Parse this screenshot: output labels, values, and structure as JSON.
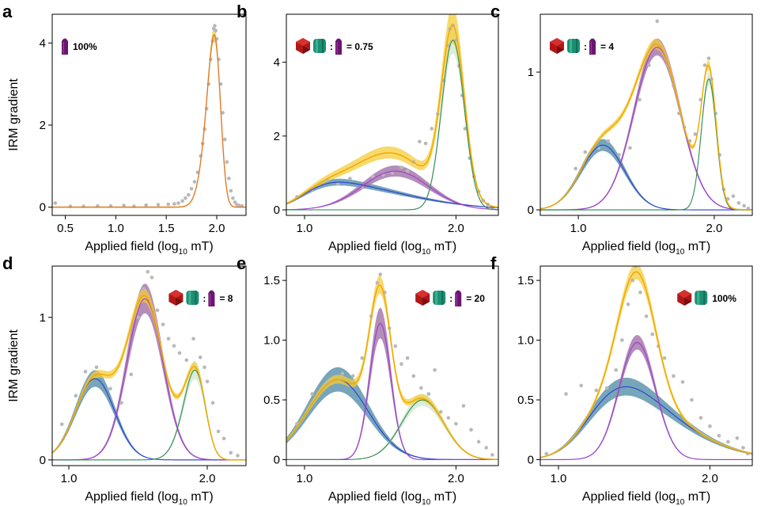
{
  "figure": {
    "colors": {
      "total_line": "#f0a800",
      "total_band": "#f5cc3a",
      "blue_line": "#2a3fd6",
      "blue_band": "#5f95ad",
      "purple_line": "#9a3fd0",
      "purple_band": "#a779ad",
      "green_line": "#2f8a52",
      "green_band": "#d3ead5",
      "data_points": "#b8b8b8",
      "hematite_icon": "#b01818",
      "goethite_icon": "#1c8f73",
      "magnetite_icon": "#6a1670"
    }
  },
  "chart_data": [
    {
      "panel": "a",
      "type": "line",
      "title": "",
      "legend_text": "100%",
      "legend_icons": [
        "purple-rod"
      ],
      "xlabel": "Applied field (log",
      "xlabel_sub": "10",
      "xlabel_unit": " mT)",
      "ylabel": "IRM gradient",
      "xlim": [
        0.37,
        2.29
      ],
      "ylim": [
        -0.2,
        4.7
      ],
      "xticks": [
        0.5,
        1.0,
        1.5,
        2.0
      ],
      "xtick_labels": [
        "0.5",
        "1.0",
        "1.5",
        "2.0"
      ],
      "yticks": [
        0,
        2,
        4
      ],
      "ytick_labels": [
        "0",
        "2",
        "4"
      ],
      "components": [
        {
          "name": "purple",
          "shape": "skewnormal",
          "loc": 2.03,
          "scale": 0.105,
          "alpha": -2.0,
          "amp": 4.2,
          "band": 0.05,
          "visible_line": false,
          "visible_band": false
        }
      ],
      "total_color": "total",
      "total_band": 0.04,
      "total_line": "#e07a2a",
      "points": [
        [
          0.4,
          0.1
        ],
        [
          0.55,
          0.02
        ],
        [
          0.68,
          0.02
        ],
        [
          0.82,
          0.03
        ],
        [
          0.95,
          0.03
        ],
        [
          1.08,
          0.04
        ],
        [
          1.18,
          0.02
        ],
        [
          1.3,
          0.05
        ],
        [
          1.42,
          0.06
        ],
        [
          1.52,
          0.07
        ],
        [
          1.58,
          0.08
        ],
        [
          1.62,
          0.1
        ],
        [
          1.66,
          0.15
        ],
        [
          1.69,
          0.22
        ],
        [
          1.72,
          0.3
        ],
        [
          1.75,
          0.45
        ],
        [
          1.78,
          0.62
        ],
        [
          1.81,
          0.85
        ],
        [
          1.84,
          1.25
        ],
        [
          1.86,
          1.55
        ],
        [
          1.88,
          1.9
        ],
        [
          1.9,
          2.4
        ],
        [
          1.92,
          3.0
        ],
        [
          1.94,
          3.6
        ],
        [
          1.96,
          4.05
        ],
        [
          1.97,
          4.35
        ],
        [
          1.98,
          4.42
        ],
        [
          1.99,
          4.3
        ],
        [
          2.0,
          4.1
        ],
        [
          2.02,
          3.6
        ],
        [
          2.04,
          3.0
        ],
        [
          2.06,
          2.3
        ],
        [
          2.08,
          1.65
        ],
        [
          2.1,
          1.1
        ],
        [
          2.12,
          0.7
        ],
        [
          2.14,
          0.4
        ],
        [
          2.16,
          0.22
        ],
        [
          2.18,
          0.12
        ],
        [
          2.2,
          0.06
        ],
        [
          2.22,
          0.04
        ],
        [
          2.25,
          0.03
        ]
      ]
    },
    {
      "panel": "b",
      "type": "line",
      "legend_text": "= 0.75",
      "legend_icons": [
        "red-octahedron",
        "green-cylinder",
        "colon",
        "purple-rod"
      ],
      "xlabel": "Applied field (log",
      "xlabel_sub": "10",
      "xlabel_unit": " mT)",
      "ylabel": "",
      "xlim": [
        0.88,
        2.28
      ],
      "ylim": [
        -0.15,
        5.3
      ],
      "xticks": [
        1.0,
        2.0
      ],
      "xtick_labels": [
        "1.0",
        "2.0"
      ],
      "yticks": [
        0,
        2,
        4
      ],
      "ytick_labels": [
        "0",
        "2",
        "4"
      ],
      "components": [
        {
          "name": "blue",
          "shape": "skewnormal",
          "loc": 1.0,
          "scale": 0.55,
          "alpha": 4.0,
          "amp": 0.75,
          "band": 0.12
        },
        {
          "name": "purple",
          "shape": "skewnormal",
          "loc": 1.6,
          "scale": 0.22,
          "alpha": 0.0,
          "amp": 1.05,
          "band": 0.14
        },
        {
          "name": "green",
          "shape": "skewnormal",
          "loc": 1.98,
          "scale": 0.075,
          "alpha": 0.0,
          "amp": 4.6,
          "band": 0.08
        }
      ],
      "total_band": 0.1,
      "points": [
        [
          0.95,
          0.35
        ],
        [
          1.05,
          0.55
        ],
        [
          1.15,
          0.8
        ],
        [
          1.22,
          0.7
        ],
        [
          1.3,
          0.85
        ],
        [
          1.38,
          0.6
        ],
        [
          1.45,
          0.9
        ],
        [
          1.52,
          0.95
        ],
        [
          1.58,
          1.0
        ],
        [
          1.64,
          1.15
        ],
        [
          1.68,
          1.05
        ],
        [
          1.72,
          1.3
        ],
        [
          1.76,
          1.85
        ],
        [
          1.8,
          1.8
        ],
        [
          1.84,
          2.2
        ],
        [
          1.88,
          2.6
        ],
        [
          1.92,
          3.5
        ],
        [
          1.95,
          4.45
        ],
        [
          1.96,
          4.9
        ],
        [
          1.98,
          5.0
        ],
        [
          2.0,
          4.6
        ],
        [
          2.02,
          3.9
        ],
        [
          2.04,
          3.1
        ],
        [
          2.06,
          2.2
        ],
        [
          2.09,
          1.4
        ],
        [
          2.12,
          0.9
        ],
        [
          2.15,
          0.5
        ],
        [
          2.18,
          0.25
        ],
        [
          2.21,
          0.15
        ],
        [
          2.24,
          0.05
        ]
      ]
    },
    {
      "panel": "c",
      "type": "line",
      "legend_text": "= 4",
      "legend_icons": [
        "red-octahedron",
        "green-cylinder",
        "colon",
        "purple-rod"
      ],
      "xlabel": "Applied field (log",
      "xlabel_sub": "10",
      "xlabel_unit": " mT)",
      "ylabel": "",
      "xlim": [
        0.72,
        2.28
      ],
      "ylim": [
        -0.04,
        1.42
      ],
      "xticks": [
        1.0,
        2.0
      ],
      "xtick_labels": [
        "1.0",
        "2.0"
      ],
      "yticks": [
        0,
        1
      ],
      "ytick_labels": [
        "0",
        "1"
      ],
      "components": [
        {
          "name": "blue",
          "shape": "skewnormal",
          "loc": 1.18,
          "scale": 0.16,
          "alpha": 0.0,
          "amp": 0.47,
          "band": 0.09
        },
        {
          "name": "purple",
          "shape": "skewnormal",
          "loc": 1.58,
          "scale": 0.17,
          "alpha": 0.0,
          "amp": 1.18,
          "band": 0.05
        },
        {
          "name": "green",
          "shape": "skewnormal",
          "loc": 1.96,
          "scale": 0.055,
          "alpha": 0.0,
          "amp": 0.95,
          "band": 0.05
        }
      ],
      "total_band": 0.03,
      "points": [
        [
          0.98,
          0.3
        ],
        [
          1.05,
          0.42
        ],
        [
          1.15,
          0.45
        ],
        [
          1.22,
          0.5
        ],
        [
          1.3,
          0.4
        ],
        [
          1.38,
          0.45
        ],
        [
          1.45,
          0.8
        ],
        [
          1.52,
          1.05
        ],
        [
          1.56,
          1.2
        ],
        [
          1.58,
          1.37
        ],
        [
          1.62,
          1.15
        ],
        [
          1.66,
          1.05
        ],
        [
          1.7,
          0.9
        ],
        [
          1.74,
          0.7
        ],
        [
          1.78,
          0.6
        ],
        [
          1.82,
          0.5
        ],
        [
          1.86,
          0.55
        ],
        [
          1.9,
          0.8
        ],
        [
          1.93,
          1.05
        ],
        [
          1.96,
          1.1
        ],
        [
          1.98,
          0.95
        ],
        [
          2.01,
          0.7
        ],
        [
          2.04,
          0.4
        ],
        [
          2.07,
          0.15
        ],
        [
          2.1,
          0.08
        ],
        [
          2.14,
          0.1
        ],
        [
          2.18,
          0.05
        ],
        [
          2.22,
          0.03
        ],
        [
          2.25,
          0.01
        ]
      ]
    },
    {
      "panel": "d",
      "type": "line",
      "legend_text": "= 8",
      "legend_icons": [
        "red-octahedron",
        "green-cylinder",
        "colon",
        "purple-rod"
      ],
      "xlabel": "Applied field (log",
      "xlabel_sub": "10",
      "xlabel_unit": " mT)",
      "ylabel": "IRM gradient",
      "xlim": [
        0.88,
        2.28
      ],
      "ylim": [
        -0.04,
        1.36
      ],
      "xticks": [
        1.0,
        2.0
      ],
      "xtick_labels": [
        "1.0",
        "2.0"
      ],
      "yticks": [
        0,
        1
      ],
      "ytick_labels": [
        "0",
        "1"
      ],
      "components": [
        {
          "name": "blue",
          "shape": "skewnormal",
          "loc": 1.19,
          "scale": 0.14,
          "alpha": 0.0,
          "amp": 0.57,
          "band": 0.1
        },
        {
          "name": "purple",
          "shape": "skewnormal",
          "loc": 1.55,
          "scale": 0.13,
          "alpha": 0.0,
          "amp": 1.13,
          "band": 0.09
        },
        {
          "name": "green",
          "shape": "skewnormal",
          "loc": 1.97,
          "scale": 0.11,
          "alpha": -1.5,
          "amp": 0.63,
          "band": 0.1
        }
      ],
      "total_band": 0.04,
      "points": [
        [
          0.95,
          0.25
        ],
        [
          1.05,
          0.45
        ],
        [
          1.12,
          0.62
        ],
        [
          1.2,
          0.65
        ],
        [
          1.3,
          0.5
        ],
        [
          1.38,
          0.4
        ],
        [
          1.45,
          0.6
        ],
        [
          1.5,
          1.0
        ],
        [
          1.54,
          1.2
        ],
        [
          1.57,
          1.32
        ],
        [
          1.6,
          1.28
        ],
        [
          1.64,
          1.05
        ],
        [
          1.68,
          0.95
        ],
        [
          1.72,
          0.85
        ],
        [
          1.76,
          0.8
        ],
        [
          1.8,
          0.75
        ],
        [
          1.85,
          0.7
        ],
        [
          1.9,
          0.85
        ],
        [
          1.95,
          0.72
        ],
        [
          1.98,
          0.65
        ],
        [
          2.0,
          0.55
        ],
        [
          2.04,
          0.4
        ],
        [
          2.08,
          0.2
        ],
        [
          2.12,
          0.15
        ],
        [
          2.17,
          0.05
        ],
        [
          2.22,
          0.03
        ]
      ]
    },
    {
      "panel": "e",
      "type": "line",
      "legend_text": "= 20",
      "legend_icons": [
        "red-octahedron",
        "green-cylinder",
        "colon",
        "purple-rod"
      ],
      "xlabel": "Applied field (log",
      "xlabel_sub": "10",
      "xlabel_unit": " mT)",
      "ylabel": "",
      "xlim": [
        0.88,
        2.28
      ],
      "ylim": [
        -0.05,
        1.62
      ],
      "xticks": [
        1.0,
        2.0
      ],
      "xtick_labels": [
        "1.0",
        "2.0"
      ],
      "yticks": [
        0,
        0.5,
        1.0,
        1.5
      ],
      "ytick_labels": [
        "0",
        "0.5",
        "1.0",
        "1.5"
      ],
      "components": [
        {
          "name": "blue",
          "shape": "skewnormal",
          "loc": 1.22,
          "scale": 0.2,
          "alpha": 0.0,
          "amp": 0.67,
          "band": 0.15
        },
        {
          "name": "purple",
          "shape": "skewnormal",
          "loc": 1.5,
          "scale": 0.07,
          "alpha": 0.0,
          "amp": 1.14,
          "band": 0.11
        },
        {
          "name": "green",
          "shape": "skewnormal",
          "loc": 1.78,
          "scale": 0.14,
          "alpha": 0.0,
          "amp": 0.5,
          "band": 0.1
        }
      ],
      "total_band": 0.05,
      "points": [
        [
          0.95,
          0.3
        ],
        [
          1.05,
          0.55
        ],
        [
          1.15,
          0.65
        ],
        [
          1.25,
          0.72
        ],
        [
          1.32,
          0.7
        ],
        [
          1.38,
          0.85
        ],
        [
          1.44,
          1.2
        ],
        [
          1.48,
          1.48
        ],
        [
          1.5,
          1.55
        ],
        [
          1.53,
          1.4
        ],
        [
          1.56,
          1.1
        ],
        [
          1.6,
          0.95
        ],
        [
          1.64,
          0.8
        ],
        [
          1.68,
          0.85
        ],
        [
          1.72,
          0.7
        ],
        [
          1.77,
          0.6
        ],
        [
          1.82,
          0.55
        ],
        [
          1.86,
          0.75
        ],
        [
          1.9,
          0.4
        ],
        [
          1.95,
          0.35
        ],
        [
          2.0,
          0.3
        ],
        [
          2.05,
          0.45
        ],
        [
          2.1,
          0.25
        ],
        [
          2.15,
          0.15
        ],
        [
          2.2,
          0.1
        ],
        [
          2.24,
          0.04
        ]
      ]
    },
    {
      "panel": "f",
      "type": "line",
      "legend_text": "100%",
      "legend_icons": [
        "red-octahedron",
        "green-cylinder"
      ],
      "xlabel": "Applied field (log",
      "xlabel_sub": "10",
      "xlabel_unit": " mT)",
      "ylabel": "",
      "xlim": [
        0.88,
        2.28
      ],
      "ylim": [
        -0.05,
        1.62
      ],
      "xticks": [
        1.0,
        2.0
      ],
      "xtick_labels": [
        "1.0",
        "2.0"
      ],
      "yticks": [
        0,
        0.5,
        1.0,
        1.5
      ],
      "ytick_labels": [
        "0",
        "0.5",
        "1.0",
        "1.5"
      ],
      "components": [
        {
          "name": "blue",
          "shape": "skewnormal",
          "loc": 1.22,
          "scale": 0.45,
          "alpha": 2.5,
          "amp": 0.61,
          "band": 0.12
        },
        {
          "name": "purple",
          "shape": "skewnormal",
          "loc": 1.52,
          "scale": 0.12,
          "alpha": 0.0,
          "amp": 0.98,
          "band": 0.06
        }
      ],
      "total_band": 0.04,
      "points": [
        [
          0.92,
          0.05
        ],
        [
          1.05,
          0.55
        ],
        [
          1.15,
          0.62
        ],
        [
          1.25,
          0.58
        ],
        [
          1.32,
          0.6
        ],
        [
          1.38,
          0.75
        ],
        [
          1.42,
          1.0
        ],
        [
          1.46,
          1.3
        ],
        [
          1.49,
          1.5
        ],
        [
          1.51,
          1.62
        ],
        [
          1.54,
          1.4
        ],
        [
          1.58,
          1.2
        ],
        [
          1.62,
          1.05
        ],
        [
          1.66,
          0.95
        ],
        [
          1.7,
          0.85
        ],
        [
          1.76,
          0.7
        ],
        [
          1.82,
          0.65
        ],
        [
          1.88,
          0.5
        ],
        [
          1.94,
          0.35
        ],
        [
          2.0,
          0.28
        ],
        [
          2.06,
          0.2
        ],
        [
          2.12,
          0.15
        ],
        [
          2.18,
          0.18
        ],
        [
          2.22,
          0.1
        ],
        [
          2.25,
          0.05
        ]
      ]
    }
  ]
}
